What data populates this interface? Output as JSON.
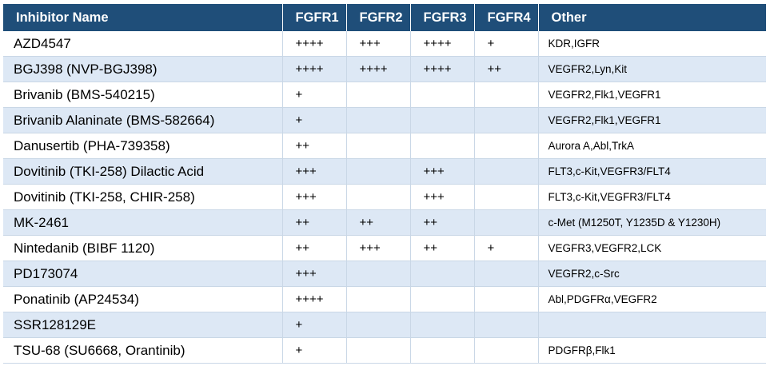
{
  "columns": [
    "Inhibitor Name",
    "FGFR1",
    "FGFR2",
    "FGFR3",
    "FGFR4",
    "Other"
  ],
  "rows": [
    {
      "name": "AZD4547",
      "fgfr1": "++++",
      "fgfr2": "+++",
      "fgfr3": "++++",
      "fgfr4": "+",
      "other": "KDR,IGFR"
    },
    {
      "name": "BGJ398 (NVP-BGJ398)",
      "fgfr1": "++++",
      "fgfr2": "++++",
      "fgfr3": "++++",
      "fgfr4": "++",
      "other": "VEGFR2,Lyn,Kit"
    },
    {
      "name": "Brivanib (BMS-540215)",
      "fgfr1": "+",
      "fgfr2": "",
      "fgfr3": "",
      "fgfr4": "",
      "other": "VEGFR2,Flk1,VEGFR1"
    },
    {
      "name": "Brivanib Alaninate (BMS-582664)",
      "fgfr1": "+",
      "fgfr2": "",
      "fgfr3": "",
      "fgfr4": "",
      "other": "VEGFR2,Flk1,VEGFR1"
    },
    {
      "name": "Danusertib (PHA-739358)",
      "fgfr1": "++",
      "fgfr2": "",
      "fgfr3": "",
      "fgfr4": "",
      "other": "Aurora A,Abl,TrkA"
    },
    {
      "name": "Dovitinib (TKI-258) Dilactic Acid",
      "fgfr1": "+++",
      "fgfr2": "",
      "fgfr3": "+++",
      "fgfr4": "",
      "other": "FLT3,c-Kit,VEGFR3/FLT4"
    },
    {
      "name": "Dovitinib (TKI-258, CHIR-258)",
      "fgfr1": "+++",
      "fgfr2": "",
      "fgfr3": "+++",
      "fgfr4": "",
      "other": "FLT3,c-Kit,VEGFR3/FLT4"
    },
    {
      "name": "MK-2461",
      "fgfr1": "++",
      "fgfr2": "++",
      "fgfr3": "++",
      "fgfr4": "",
      "other": "c-Met (M1250T, Y1235D & Y1230H)"
    },
    {
      "name": "Nintedanib (BIBF 1120)",
      "fgfr1": "++",
      "fgfr2": "+++",
      "fgfr3": "++",
      "fgfr4": "+",
      "other": "VEGFR3,VEGFR2,LCK"
    },
    {
      "name": "PD173074",
      "fgfr1": "+++",
      "fgfr2": "",
      "fgfr3": "",
      "fgfr4": "",
      "other": "VEGFR2,c-Src"
    },
    {
      "name": "Ponatinib (AP24534)",
      "fgfr1": "++++",
      "fgfr2": "",
      "fgfr3": "",
      "fgfr4": "",
      "other": "Abl,PDGFRα,VEGFR2"
    },
    {
      "name": "SSR128129E",
      "fgfr1": "+",
      "fgfr2": "",
      "fgfr3": "",
      "fgfr4": "",
      "other": ""
    },
    {
      "name": "TSU-68 (SU6668, Orantinib)",
      "fgfr1": "+",
      "fgfr2": "",
      "fgfr3": "",
      "fgfr4": "",
      "other": "PDGFRβ,Flk1"
    }
  ]
}
